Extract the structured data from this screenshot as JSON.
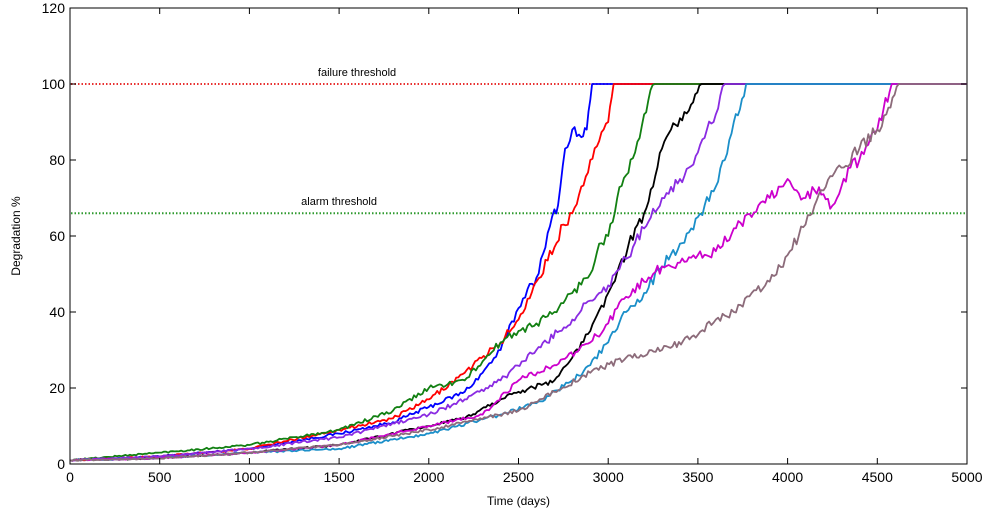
{
  "chart_data": {
    "type": "line",
    "title": "",
    "xlabel": "Time (days)",
    "ylabel": "Degradation %",
    "xlim": [
      0,
      5000
    ],
    "ylim": [
      0,
      120
    ],
    "xticks": [
      0,
      500,
      1000,
      1500,
      2000,
      2500,
      3000,
      3500,
      4000,
      4500,
      5000
    ],
    "yticks": [
      0,
      20,
      40,
      60,
      80,
      100,
      120
    ],
    "grid": false,
    "legend": "none",
    "thresholds": [
      {
        "label": "failure threshold",
        "y": 100,
        "color": "#e83030",
        "label_x": 1600
      },
      {
        "label": "alarm threshold",
        "y": 66,
        "color": "#2e9a2e",
        "label_x": 1500
      }
    ],
    "series": [
      {
        "color": "#0000ff",
        "x": [
          0,
          500,
          1000,
          1500,
          1800,
          2000,
          2200,
          2300,
          2400,
          2500,
          2550,
          2600,
          2650,
          2700,
          2720,
          2760,
          2800,
          2850,
          2880,
          2910,
          3000,
          5000
        ],
        "y": [
          1,
          2,
          4,
          8,
          11,
          15,
          19,
          24,
          30,
          41,
          46,
          49,
          57,
          67,
          68,
          83,
          88,
          86,
          88,
          100,
          100,
          100
        ]
      },
      {
        "color": "#ff0000",
        "x": [
          0,
          500,
          1000,
          1500,
          1800,
          2000,
          2200,
          2400,
          2500,
          2600,
          2700,
          2750,
          2800,
          2850,
          2900,
          2950,
          3000,
          3030,
          5000
        ],
        "y": [
          1,
          2,
          4,
          9,
          12,
          17,
          24,
          32,
          38,
          48,
          57,
          63,
          66,
          73,
          80,
          85,
          90,
          100,
          100
        ]
      },
      {
        "color": "#128012",
        "x": [
          0,
          500,
          1000,
          1500,
          1800,
          2000,
          2200,
          2300,
          2400,
          2500,
          2600,
          2700,
          2800,
          2900,
          2950,
          3000,
          3050,
          3100,
          3150,
          3200,
          3260,
          5000
        ],
        "y": [
          1,
          3,
          5,
          9,
          14,
          20,
          22,
          27,
          32,
          35,
          37,
          40,
          45,
          50,
          58,
          60,
          70,
          76,
          82,
          92,
          100,
          100
        ]
      },
      {
        "color": "#000000",
        "x": [
          0,
          500,
          1000,
          1500,
          2000,
          2200,
          2400,
          2500,
          2700,
          2800,
          2900,
          3000,
          3100,
          3150,
          3200,
          3250,
          3300,
          3350,
          3400,
          3450,
          3520,
          5000
        ],
        "y": [
          1,
          1.5,
          3,
          5,
          10,
          12,
          17,
          19,
          22,
          28,
          35,
          45,
          55,
          62,
          66,
          73,
          83,
          88,
          91,
          93,
          100,
          100
        ]
      },
      {
        "color": "#8a2be2",
        "x": [
          0,
          500,
          1000,
          1500,
          2000,
          2200,
          2400,
          2600,
          2800,
          2900,
          3000,
          3100,
          3200,
          3300,
          3400,
          3450,
          3500,
          3550,
          3600,
          3650,
          5000
        ],
        "y": [
          1,
          2,
          4,
          7,
          13,
          17,
          22,
          30,
          38,
          43,
          47,
          54,
          62,
          70,
          75,
          78,
          82,
          88,
          92,
          100,
          100
        ]
      },
      {
        "color": "#1b8fc9",
        "x": [
          0,
          500,
          1000,
          1500,
          2000,
          2400,
          2600,
          2800,
          2900,
          3000,
          3100,
          3200,
          3300,
          3400,
          3500,
          3600,
          3650,
          3700,
          3780,
          5000
        ],
        "y": [
          1,
          1.5,
          3,
          4,
          8,
          13,
          16,
          22,
          26,
          32,
          40,
          45,
          52,
          58,
          65,
          73,
          80,
          90,
          100,
          100
        ]
      },
      {
        "color": "#cc00cc",
        "x": [
          0,
          500,
          1000,
          1500,
          2000,
          2300,
          2500,
          2700,
          2900,
          3000,
          3100,
          3200,
          3300,
          3400,
          3500,
          3600,
          3700,
          3800,
          3900,
          3950,
          4000,
          4050,
          4100,
          4150,
          4200,
          4250,
          4300,
          4350,
          4400,
          4450,
          4500,
          4580,
          5000
        ],
        "y": [
          1,
          1.5,
          3,
          5,
          10,
          13,
          22,
          26,
          32,
          37,
          44,
          48,
          52,
          53,
          55,
          56,
          62,
          65,
          70,
          73,
          75,
          72,
          70,
          72,
          71,
          68,
          73,
          78,
          80,
          84,
          88,
          100,
          100
        ]
      },
      {
        "color": "#8c6b7a",
        "x": [
          0,
          500,
          1000,
          1500,
          2000,
          2500,
          2700,
          2900,
          3100,
          3300,
          3500,
          3600,
          3700,
          3800,
          3900,
          4000,
          4100,
          4150,
          4200,
          4300,
          4400,
          4500,
          4550,
          4620,
          5000
        ],
        "y": [
          1,
          1.5,
          3,
          5,
          9,
          14,
          19,
          24,
          28,
          30,
          34,
          38,
          40,
          45,
          48,
          55,
          63,
          68,
          72,
          78,
          83,
          88,
          92,
          100,
          100
        ]
      }
    ]
  }
}
